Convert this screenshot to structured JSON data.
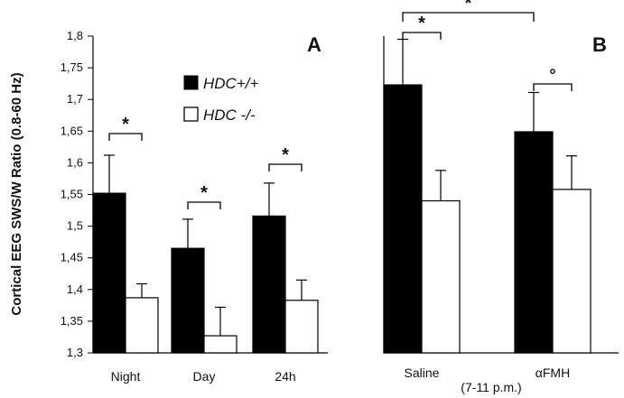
{
  "chart_data": [
    {
      "panel": "A",
      "type": "bar",
      "ylabel": "Cortical EEG SWS/W Ratio (0.8-60 Hz)",
      "ylim": [
        1.3,
        1.8
      ],
      "yticks": [
        "1,3",
        "1,35",
        "1,4",
        "1,45",
        "1,5",
        "1,55",
        "1,6",
        "1,65",
        "1,7",
        "1,75",
        "1,8"
      ],
      "yticks_values": [
        1.3,
        1.35,
        1.4,
        1.45,
        1.5,
        1.55,
        1.6,
        1.65,
        1.7,
        1.75,
        1.8
      ],
      "categories": [
        "Night",
        "Day",
        "24h"
      ],
      "series": [
        {
          "name": "HDC+/+",
          "color": "#000000",
          "values": [
            1.552,
            1.465,
            1.516
          ],
          "errors": [
            0.06,
            0.046,
            0.052
          ]
        },
        {
          "name": "HDC -/-",
          "color": "#ffffff",
          "values": [
            1.387,
            1.327,
            1.383
          ],
          "errors": [
            0.022,
            0.045,
            0.032
          ]
        }
      ],
      "annotations": [
        {
          "category": "Night",
          "text": "*"
        },
        {
          "category": "Day",
          "text": "*"
        },
        {
          "category": "24h",
          "text": "*"
        }
      ],
      "legend": {
        "placement": "top-right",
        "entries": [
          "HDC+/+",
          "HDC -/-"
        ]
      }
    },
    {
      "panel": "B",
      "type": "bar",
      "ylim": [
        1.3,
        1.8
      ],
      "categories": [
        "Saline",
        "αFMH"
      ],
      "category_sublabel": "(7-11 p.m.)",
      "series": [
        {
          "name": "HDC+/+",
          "color": "#000000",
          "values": [
            1.723,
            1.649
          ],
          "errors": [
            0.072,
            0.062
          ]
        },
        {
          "name": "HDC -/-",
          "color": "#ffffff",
          "values": [
            1.54,
            1.558
          ],
          "errors": [
            0.048,
            0.053
          ]
        }
      ],
      "annotations": [
        {
          "between": "Saline HDC+/+ vs Saline HDC -/-",
          "text": "*"
        },
        {
          "between": "αFMH HDC+/+ vs αFMH HDC -/-",
          "text": "°"
        },
        {
          "between": "Saline HDC+/+ vs αFMH HDC+/+",
          "text": "*"
        }
      ]
    }
  ]
}
